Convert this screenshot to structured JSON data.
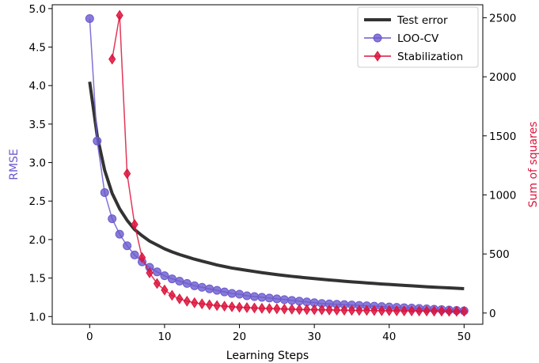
{
  "chart_data": {
    "type": "line",
    "xlabel": "Learning Steps",
    "ylabel_left": "RMSE",
    "ylabel_right": "Sum of squares",
    "xlim": [
      -5,
      52.5
    ],
    "ylim_left": [
      0.9,
      5.05
    ],
    "ylim_right": [
      -95,
      2610
    ],
    "xticks": [
      0,
      10,
      20,
      30,
      40,
      50
    ],
    "yticks_left": [
      1.0,
      1.5,
      2.0,
      2.5,
      3.0,
      3.5,
      4.0,
      4.5,
      5.0
    ],
    "yticks_right": [
      0,
      500,
      1000,
      1500,
      2000,
      2500
    ],
    "legend_position": "top-right",
    "grid": false,
    "series": [
      {
        "name": "Test error",
        "axis": "left",
        "color": "#333333",
        "marker": "none",
        "x": [
          0,
          1,
          2,
          3,
          4,
          5,
          6,
          7,
          8,
          9,
          10,
          11,
          12,
          13,
          14,
          15,
          16,
          17,
          18,
          19,
          20,
          21,
          22,
          23,
          24,
          25,
          26,
          27,
          28,
          29,
          30,
          31,
          32,
          33,
          34,
          35,
          36,
          37,
          38,
          39,
          40,
          41,
          42,
          43,
          44,
          45,
          46,
          47,
          48,
          49,
          50
        ],
        "y": [
          4.05,
          3.35,
          2.9,
          2.6,
          2.4,
          2.25,
          2.13,
          2.05,
          1.98,
          1.93,
          1.88,
          1.84,
          1.805,
          1.775,
          1.745,
          1.72,
          1.695,
          1.67,
          1.65,
          1.63,
          1.615,
          1.6,
          1.585,
          1.57,
          1.557,
          1.545,
          1.533,
          1.522,
          1.512,
          1.502,
          1.493,
          1.484,
          1.475,
          1.467,
          1.459,
          1.451,
          1.444,
          1.437,
          1.43,
          1.423,
          1.417,
          1.411,
          1.405,
          1.399,
          1.393,
          1.387,
          1.382,
          1.377,
          1.372,
          1.367,
          1.362
        ]
      },
      {
        "name": "LOO-CV",
        "axis": "left",
        "color": "#6a5acd",
        "marker": "circle",
        "x": [
          0,
          1,
          2,
          3,
          4,
          5,
          6,
          7,
          8,
          9,
          10,
          11,
          12,
          13,
          14,
          15,
          16,
          17,
          18,
          19,
          20,
          21,
          22,
          23,
          24,
          25,
          26,
          27,
          28,
          29,
          30,
          31,
          32,
          33,
          34,
          35,
          36,
          37,
          38,
          39,
          40,
          41,
          42,
          43,
          44,
          45,
          46,
          47,
          48,
          49,
          50
        ],
        "y": [
          4.87,
          3.28,
          2.61,
          2.27,
          2.07,
          1.92,
          1.8,
          1.71,
          1.64,
          1.58,
          1.53,
          1.49,
          1.46,
          1.43,
          1.4,
          1.38,
          1.36,
          1.34,
          1.32,
          1.3,
          1.29,
          1.27,
          1.26,
          1.25,
          1.24,
          1.23,
          1.22,
          1.21,
          1.2,
          1.19,
          1.18,
          1.17,
          1.165,
          1.16,
          1.155,
          1.15,
          1.145,
          1.14,
          1.135,
          1.13,
          1.125,
          1.12,
          1.115,
          1.11,
          1.105,
          1.1,
          1.095,
          1.09,
          1.085,
          1.08,
          1.075
        ]
      },
      {
        "name": "Stabilization",
        "axis": "right",
        "color": "#dc143c",
        "marker": "diamond",
        "x": [
          3,
          4,
          5,
          6,
          7,
          8,
          9,
          10,
          11,
          12,
          13,
          14,
          15,
          16,
          17,
          18,
          19,
          20,
          21,
          22,
          23,
          24,
          25,
          26,
          27,
          28,
          29,
          30,
          31,
          32,
          33,
          34,
          35,
          36,
          37,
          38,
          39,
          40,
          41,
          42,
          43,
          44,
          45,
          46,
          47,
          48,
          49,
          50
        ],
        "y": [
          2150,
          2520,
          1180,
          750,
          470,
          340,
          250,
          195,
          150,
          120,
          100,
          87,
          78,
          70,
          63,
          58,
          53,
          49,
          46,
          43,
          40,
          38,
          36,
          34,
          32,
          30,
          29,
          28,
          27,
          26,
          25,
          24,
          23,
          22,
          22,
          21,
          20,
          20,
          19,
          18,
          18,
          17,
          17,
          16,
          16,
          15,
          15,
          14
        ]
      }
    ]
  }
}
